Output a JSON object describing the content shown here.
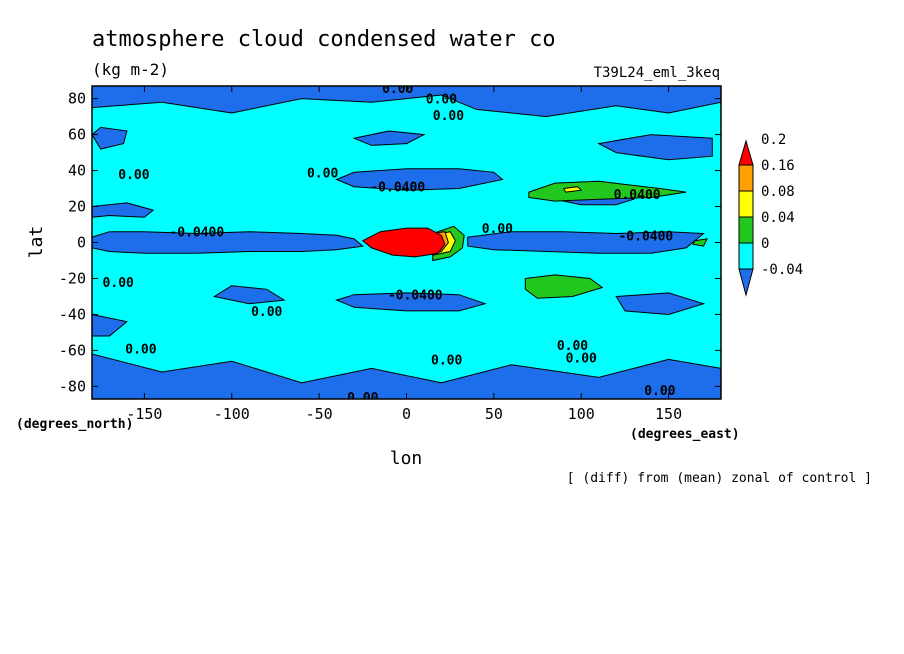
{
  "chart_data": {
    "type": "heatmap",
    "title": "atmosphere cloud condensed water co",
    "units": "(kg m-2)",
    "run_label": "T39L24_eml_3keq",
    "xlabel": "lon",
    "ylabel": "lat",
    "x_units": "(degrees_east)",
    "y_units": "(degrees_north)",
    "footnote": "[ (diff) from (mean) zonal of control ]",
    "xlim": [
      -180,
      180
    ],
    "ylim": [
      -87,
      87
    ],
    "x_ticks": [
      -150,
      -100,
      -50,
      0,
      50,
      100,
      150
    ],
    "y_ticks": [
      -80,
      -60,
      -40,
      -20,
      0,
      20,
      40,
      60,
      80
    ],
    "colorbar": {
      "levels": [
        -0.04,
        0,
        0.04,
        0.08,
        0.16,
        0.2
      ],
      "tick_labels": [
        "-0.04",
        "0",
        "0.04",
        "0.08",
        "0.16",
        "0.2"
      ],
      "colors": [
        "#1e6eeb",
        "#00ffff",
        "#23c81e",
        "#ffff00",
        "#ffa000",
        "#ff0000"
      ]
    },
    "regions": [
      {
        "name": "negative",
        "level": "< -0.04",
        "color": "#1e6eeb",
        "polys": [
          [
            [
              -180,
              3
            ],
            [
              -170,
              6
            ],
            [
              -150,
              6
            ],
            [
              -120,
              5
            ],
            [
              -90,
              6
            ],
            [
              -60,
              5
            ],
            [
              -40,
              4
            ],
            [
              -30,
              2
            ],
            [
              -25,
              -2
            ],
            [
              -40,
              -4
            ],
            [
              -60,
              -5
            ],
            [
              -90,
              -5
            ],
            [
              -120,
              -6
            ],
            [
              -150,
              -6
            ],
            [
              -170,
              -5
            ],
            [
              -180,
              -3
            ]
          ],
          [
            [
              35,
              3
            ],
            [
              60,
              6
            ],
            [
              90,
              6
            ],
            [
              120,
              5
            ],
            [
              150,
              6
            ],
            [
              170,
              5
            ],
            [
              160,
              -3
            ],
            [
              140,
              -6
            ],
            [
              110,
              -6
            ],
            [
              80,
              -5
            ],
            [
              50,
              -4
            ],
            [
              35,
              -2
            ]
          ],
          [
            [
              -40,
              35
            ],
            [
              -30,
              39
            ],
            [
              0,
              41
            ],
            [
              30,
              41
            ],
            [
              50,
              39
            ],
            [
              55,
              35
            ],
            [
              30,
              30
            ],
            [
              0,
              29
            ],
            [
              -30,
              31
            ]
          ],
          [
            [
              -40,
              -32
            ],
            [
              -30,
              -36
            ],
            [
              0,
              -38
            ],
            [
              30,
              -38
            ],
            [
              45,
              -34
            ],
            [
              30,
              -29
            ],
            [
              0,
              -28
            ],
            [
              -30,
              -29
            ]
          ],
          [
            [
              -180,
              87
            ],
            [
              -120,
              87
            ],
            [
              -60,
              87
            ],
            [
              0,
              87
            ],
            [
              60,
              87
            ],
            [
              120,
              87
            ],
            [
              180,
              87
            ],
            [
              180,
              78
            ],
            [
              150,
              72
            ],
            [
              120,
              76
            ],
            [
              80,
              70
            ],
            [
              40,
              74
            ],
            [
              20,
              82
            ],
            [
              -20,
              78
            ],
            [
              -60,
              80
            ],
            [
              -100,
              72
            ],
            [
              -140,
              78
            ],
            [
              -180,
              75
            ]
          ],
          [
            [
              -180,
              -87
            ],
            [
              180,
              -87
            ],
            [
              180,
              -70
            ],
            [
              150,
              -65
            ],
            [
              110,
              -75
            ],
            [
              60,
              -68
            ],
            [
              20,
              -78
            ],
            [
              -20,
              -70
            ],
            [
              -60,
              -78
            ],
            [
              -100,
              -66
            ],
            [
              -140,
              -72
            ],
            [
              -180,
              -62
            ]
          ],
          [
            [
              -180,
              60
            ],
            [
              -175,
              64
            ],
            [
              -160,
              62
            ],
            [
              -162,
              55
            ],
            [
              -175,
              52
            ]
          ],
          [
            [
              -180,
              20
            ],
            [
              -160,
              22
            ],
            [
              -145,
              18
            ],
            [
              -150,
              14
            ],
            [
              -170,
              15
            ],
            [
              -180,
              14
            ]
          ],
          [
            [
              80,
              25
            ],
            [
              100,
              28
            ],
            [
              120,
              27
            ],
            [
              130,
              24
            ],
            [
              120,
              21
            ],
            [
              100,
              21
            ]
          ],
          [
            [
              -30,
              58
            ],
            [
              -10,
              62
            ],
            [
              10,
              60
            ],
            [
              0,
              55
            ],
            [
              -20,
              54
            ]
          ],
          [
            [
              110,
              55
            ],
            [
              140,
              60
            ],
            [
              175,
              58
            ],
            [
              175,
              48
            ],
            [
              150,
              46
            ],
            [
              120,
              50
            ]
          ],
          [
            [
              -100,
              -24
            ],
            [
              -80,
              -26
            ],
            [
              -70,
              -32
            ],
            [
              -90,
              -34
            ],
            [
              -110,
              -30
            ]
          ],
          [
            [
              120,
              -30
            ],
            [
              150,
              -28
            ],
            [
              170,
              -34
            ],
            [
              150,
              -40
            ],
            [
              125,
              -38
            ]
          ],
          [
            [
              -180,
              -40
            ],
            [
              -160,
              -44
            ],
            [
              -170,
              -52
            ],
            [
              -180,
              -52
            ]
          ]
        ]
      },
      {
        "name": "green",
        "level": "0.04 to 0.08",
        "color": "#23c81e",
        "polys": [
          [
            [
              70,
              28
            ],
            [
              85,
              33
            ],
            [
              110,
              34
            ],
            [
              145,
              30
            ],
            [
              160,
              28
            ],
            [
              140,
              25
            ],
            [
              110,
              24
            ],
            [
              85,
              23
            ],
            [
              70,
              25
            ]
          ],
          [
            [
              68,
              -20
            ],
            [
              85,
              -18
            ],
            [
              105,
              -20
            ],
            [
              112,
              -25
            ],
            [
              95,
              -30
            ],
            [
              75,
              -31
            ],
            [
              68,
              -26
            ]
          ],
          [
            [
              15,
              5
            ],
            [
              27,
              9
            ],
            [
              33,
              4
            ],
            [
              32,
              -3
            ],
            [
              25,
              -8
            ],
            [
              15,
              -10
            ]
          ],
          [
            [
              165,
              1
            ],
            [
              172,
              2
            ],
            [
              170,
              -2
            ],
            [
              164,
              -1
            ]
          ]
        ]
      },
      {
        "name": "yellow",
        "level": "0.08 to 0.16",
        "color": "#ffff00",
        "polys": [
          [
            [
              90,
              30
            ],
            [
              98,
              31
            ],
            [
              100,
              29
            ],
            [
              91,
              28
            ]
          ],
          [
            [
              15,
              4
            ],
            [
              25,
              6
            ],
            [
              28,
              1
            ],
            [
              25,
              -5
            ],
            [
              15,
              -7
            ]
          ]
        ]
      },
      {
        "name": "orange",
        "level": "0.16 to 0.2",
        "color": "#ffa000",
        "polys": [
          [
            [
              14,
              5
            ],
            [
              22,
              6
            ],
            [
              24,
              0
            ],
            [
              20,
              -5
            ],
            [
              14,
              -6
            ]
          ]
        ]
      },
      {
        "name": "red",
        "level": "> 0.2",
        "color": "#ff0000",
        "polys": [
          [
            [
              -25,
              1
            ],
            [
              -15,
              6
            ],
            [
              0,
              8
            ],
            [
              12,
              8
            ],
            [
              20,
              4
            ],
            [
              22,
              -1
            ],
            [
              18,
              -6
            ],
            [
              5,
              -8
            ],
            [
              -8,
              -7
            ],
            [
              -20,
              -3
            ]
          ]
        ]
      }
    ],
    "contour_labels": [
      {
        "text": "0.00",
        "lon": -5,
        "lat": 86
      },
      {
        "text": "0.00",
        "lon": 20,
        "lat": 80
      },
      {
        "text": "0.00",
        "lon": 24,
        "lat": 71
      },
      {
        "text": "0.00",
        "lon": -156,
        "lat": 38
      },
      {
        "text": "0.00",
        "lon": -48,
        "lat": 39
      },
      {
        "text": "-0.0400",
        "lon": -5,
        "lat": 31
      },
      {
        "text": "0.0400",
        "lon": 132,
        "lat": 27
      },
      {
        "text": "-0.0400",
        "lon": -120,
        "lat": 6
      },
      {
        "text": "-0.0400",
        "lon": 137,
        "lat": 4
      },
      {
        "text": "0.00",
        "lon": 52,
        "lat": 8
      },
      {
        "text": "0.00",
        "lon": -165,
        "lat": -22
      },
      {
        "text": "-0.0400",
        "lon": 5,
        "lat": -29
      },
      {
        "text": "0.00",
        "lon": -80,
        "lat": -38
      },
      {
        "text": "0.00",
        "lon": -152,
        "lat": -59
      },
      {
        "text": "0.00",
        "lon": 95,
        "lat": -57
      },
      {
        "text": "0.00",
        "lon": 100,
        "lat": -64
      },
      {
        "text": "0.00",
        "lon": 23,
        "lat": -65
      },
      {
        "text": "0.00",
        "lon": 145,
        "lat": -82
      },
      {
        "text": "0.00",
        "lon": -25,
        "lat": -86
      }
    ]
  }
}
